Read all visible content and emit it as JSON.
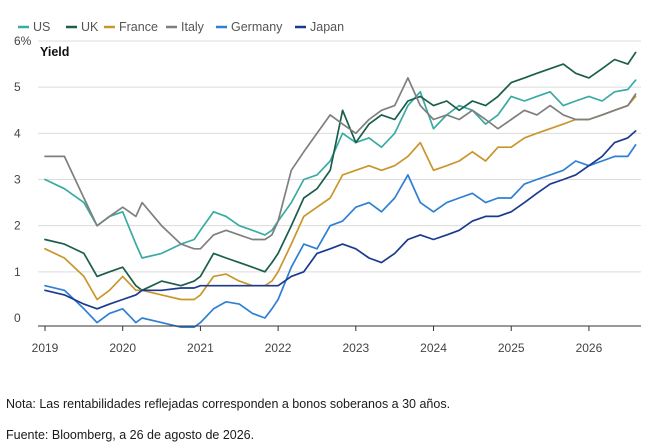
{
  "chart_data": {
    "type": "line",
    "ylabel": "Yield",
    "y_unit": "%",
    "ylim": [
      0,
      6
    ],
    "y_ticks": [
      "0",
      "1",
      "2",
      "3",
      "4",
      "5",
      "6%"
    ],
    "xlim": [
      2019,
      2026.67
    ],
    "x_ticks": [
      "2019",
      "2020",
      "2021",
      "2022",
      "2023",
      "2024",
      "2025",
      "2026"
    ],
    "grid": "horizontal",
    "legend_position": "top-left",
    "series": [
      {
        "name": "US",
        "color": "#3aaba3",
        "x": [
          2019.0,
          2019.25,
          2019.5,
          2019.67,
          2019.83,
          2020.0,
          2020.17,
          2020.25,
          2020.5,
          2020.75,
          2020.92,
          2021.0,
          2021.17,
          2021.33,
          2021.5,
          2021.67,
          2021.83,
          2021.92,
          2022.0,
          2022.17,
          2022.33,
          2022.5,
          2022.67,
          2022.83,
          2023.0,
          2023.17,
          2023.33,
          2023.5,
          2023.67,
          2023.83,
          2024.0,
          2024.17,
          2024.33,
          2024.5,
          2024.67,
          2024.83,
          2025.0,
          2025.17,
          2025.33,
          2025.5,
          2025.67,
          2025.83,
          2026.0,
          2026.17,
          2026.33,
          2026.5,
          2026.6
        ],
        "values": [
          3.0,
          2.8,
          2.5,
          2.0,
          2.2,
          2.3,
          1.6,
          1.3,
          1.4,
          1.6,
          1.7,
          1.9,
          2.3,
          2.2,
          2.0,
          1.9,
          1.8,
          1.9,
          2.1,
          2.5,
          3.0,
          3.1,
          3.4,
          4.0,
          3.8,
          3.9,
          3.7,
          4.0,
          4.6,
          4.9,
          4.1,
          4.4,
          4.6,
          4.5,
          4.2,
          4.4,
          4.8,
          4.7,
          4.8,
          4.9,
          4.6,
          4.7,
          4.8,
          4.7,
          4.9,
          4.95,
          5.15
        ]
      },
      {
        "name": "UK",
        "color": "#1b5e4b",
        "x": [
          2019.0,
          2019.25,
          2019.5,
          2019.67,
          2019.83,
          2020.0,
          2020.17,
          2020.25,
          2020.5,
          2020.75,
          2020.92,
          2021.0,
          2021.17,
          2021.33,
          2021.5,
          2021.67,
          2021.83,
          2021.92,
          2022.0,
          2022.17,
          2022.33,
          2022.5,
          2022.67,
          2022.83,
          2023.0,
          2023.17,
          2023.33,
          2023.5,
          2023.67,
          2023.83,
          2024.0,
          2024.17,
          2024.33,
          2024.5,
          2024.67,
          2024.83,
          2025.0,
          2025.17,
          2025.33,
          2025.5,
          2025.67,
          2025.83,
          2026.0,
          2026.17,
          2026.33,
          2026.5,
          2026.6
        ],
        "values": [
          1.7,
          1.6,
          1.4,
          0.9,
          1.0,
          1.1,
          0.7,
          0.6,
          0.8,
          0.7,
          0.8,
          0.9,
          1.4,
          1.3,
          1.2,
          1.1,
          1.0,
          1.2,
          1.4,
          2.0,
          2.6,
          2.8,
          3.2,
          4.5,
          3.8,
          4.2,
          4.4,
          4.3,
          4.7,
          4.8,
          4.6,
          4.7,
          4.5,
          4.7,
          4.6,
          4.8,
          5.1,
          5.2,
          5.3,
          5.4,
          5.5,
          5.3,
          5.2,
          5.4,
          5.6,
          5.5,
          5.75
        ]
      },
      {
        "name": "France",
        "color": "#c9962b",
        "x": [
          2019.0,
          2019.25,
          2019.5,
          2019.67,
          2019.83,
          2020.0,
          2020.17,
          2020.25,
          2020.5,
          2020.75,
          2020.92,
          2021.0,
          2021.17,
          2021.33,
          2021.5,
          2021.67,
          2021.83,
          2021.92,
          2022.0,
          2022.17,
          2022.33,
          2022.5,
          2022.67,
          2022.83,
          2023.0,
          2023.17,
          2023.33,
          2023.5,
          2023.67,
          2023.83,
          2024.0,
          2024.17,
          2024.33,
          2024.5,
          2024.67,
          2024.83,
          2025.0,
          2025.17,
          2025.33,
          2025.5,
          2025.67,
          2025.83,
          2026.0,
          2026.17,
          2026.33,
          2026.5,
          2026.6
        ],
        "values": [
          1.5,
          1.3,
          0.9,
          0.4,
          0.6,
          0.9,
          0.6,
          0.6,
          0.5,
          0.4,
          0.4,
          0.5,
          0.9,
          0.95,
          0.8,
          0.7,
          0.7,
          0.8,
          1.0,
          1.6,
          2.2,
          2.4,
          2.6,
          3.1,
          3.2,
          3.3,
          3.2,
          3.3,
          3.5,
          3.8,
          3.2,
          3.3,
          3.4,
          3.6,
          3.4,
          3.7,
          3.7,
          3.9,
          4.0,
          4.1,
          4.2,
          4.3,
          4.3,
          4.4,
          4.5,
          4.6,
          4.8
        ]
      },
      {
        "name": "Italy",
        "color": "#7f7f7f",
        "x": [
          2019.0,
          2019.25,
          2019.5,
          2019.67,
          2019.83,
          2020.0,
          2020.17,
          2020.25,
          2020.5,
          2020.75,
          2020.92,
          2021.0,
          2021.17,
          2021.33,
          2021.5,
          2021.67,
          2021.83,
          2021.92,
          2022.0,
          2022.17,
          2022.33,
          2022.5,
          2022.67,
          2022.83,
          2023.0,
          2023.17,
          2023.33,
          2023.5,
          2023.67,
          2023.83,
          2024.0,
          2024.17,
          2024.33,
          2024.5,
          2024.67,
          2024.83,
          2025.0,
          2025.17,
          2025.33,
          2025.5,
          2025.67,
          2025.83,
          2026.0,
          2026.17,
          2026.33,
          2026.5,
          2026.6
        ],
        "values": [
          3.5,
          3.5,
          2.6,
          2.0,
          2.2,
          2.4,
          2.2,
          2.5,
          2.0,
          1.6,
          1.5,
          1.5,
          1.8,
          1.9,
          1.8,
          1.7,
          1.7,
          1.8,
          2.1,
          3.2,
          3.6,
          4.0,
          4.4,
          4.2,
          4.0,
          4.3,
          4.5,
          4.6,
          5.2,
          4.6,
          4.3,
          4.4,
          4.3,
          4.5,
          4.3,
          4.1,
          4.3,
          4.5,
          4.4,
          4.6,
          4.4,
          4.3,
          4.3,
          4.4,
          4.5,
          4.6,
          4.85
        ]
      },
      {
        "name": "Germany",
        "color": "#2f7fd4",
        "x": [
          2019.0,
          2019.25,
          2019.5,
          2019.67,
          2019.83,
          2020.0,
          2020.17,
          2020.25,
          2020.5,
          2020.75,
          2020.92,
          2021.0,
          2021.17,
          2021.33,
          2021.5,
          2021.67,
          2021.83,
          2021.92,
          2022.0,
          2022.17,
          2022.33,
          2022.5,
          2022.67,
          2022.83,
          2023.0,
          2023.17,
          2023.33,
          2023.5,
          2023.67,
          2023.83,
          2024.0,
          2024.17,
          2024.33,
          2024.5,
          2024.67,
          2024.83,
          2025.0,
          2025.17,
          2025.33,
          2025.5,
          2025.67,
          2025.83,
          2026.0,
          2026.17,
          2026.33,
          2026.5,
          2026.6
        ],
        "values": [
          0.7,
          0.6,
          0.2,
          -0.1,
          0.1,
          0.2,
          -0.1,
          0.0,
          -0.1,
          -0.2,
          -0.2,
          -0.1,
          0.2,
          0.35,
          0.3,
          0.1,
          0.0,
          0.2,
          0.4,
          1.1,
          1.6,
          1.5,
          2.0,
          2.1,
          2.4,
          2.5,
          2.3,
          2.6,
          3.1,
          2.5,
          2.3,
          2.5,
          2.6,
          2.7,
          2.5,
          2.6,
          2.6,
          2.9,
          3.0,
          3.1,
          3.2,
          3.4,
          3.3,
          3.4,
          3.5,
          3.5,
          3.75
        ]
      },
      {
        "name": "Japan",
        "color": "#1a3a8f",
        "x": [
          2019.0,
          2019.25,
          2019.5,
          2019.67,
          2019.83,
          2020.0,
          2020.17,
          2020.25,
          2020.5,
          2020.75,
          2020.92,
          2021.0,
          2021.17,
          2021.33,
          2021.5,
          2021.67,
          2021.83,
          2021.92,
          2022.0,
          2022.17,
          2022.33,
          2022.5,
          2022.67,
          2022.83,
          2023.0,
          2023.17,
          2023.33,
          2023.5,
          2023.67,
          2023.83,
          2024.0,
          2024.17,
          2024.33,
          2024.5,
          2024.67,
          2024.83,
          2025.0,
          2025.17,
          2025.33,
          2025.5,
          2025.67,
          2025.83,
          2026.0,
          2026.17,
          2026.33,
          2026.5,
          2026.6
        ],
        "values": [
          0.6,
          0.5,
          0.3,
          0.2,
          0.3,
          0.4,
          0.5,
          0.6,
          0.6,
          0.65,
          0.65,
          0.7,
          0.7,
          0.7,
          0.7,
          0.7,
          0.7,
          0.7,
          0.7,
          0.9,
          1.0,
          1.4,
          1.5,
          1.6,
          1.5,
          1.3,
          1.2,
          1.4,
          1.7,
          1.8,
          1.7,
          1.8,
          1.9,
          2.1,
          2.2,
          2.2,
          2.3,
          2.5,
          2.7,
          2.9,
          3.0,
          3.1,
          3.3,
          3.5,
          3.8,
          3.9,
          4.05
        ]
      }
    ]
  },
  "notes": {
    "note": "Nota: Las rentabilidades reflejadas corresponden a bonos soberanos a 30 años.",
    "source": "Fuente: Bloomberg, a 26 de agosto de 2026."
  }
}
